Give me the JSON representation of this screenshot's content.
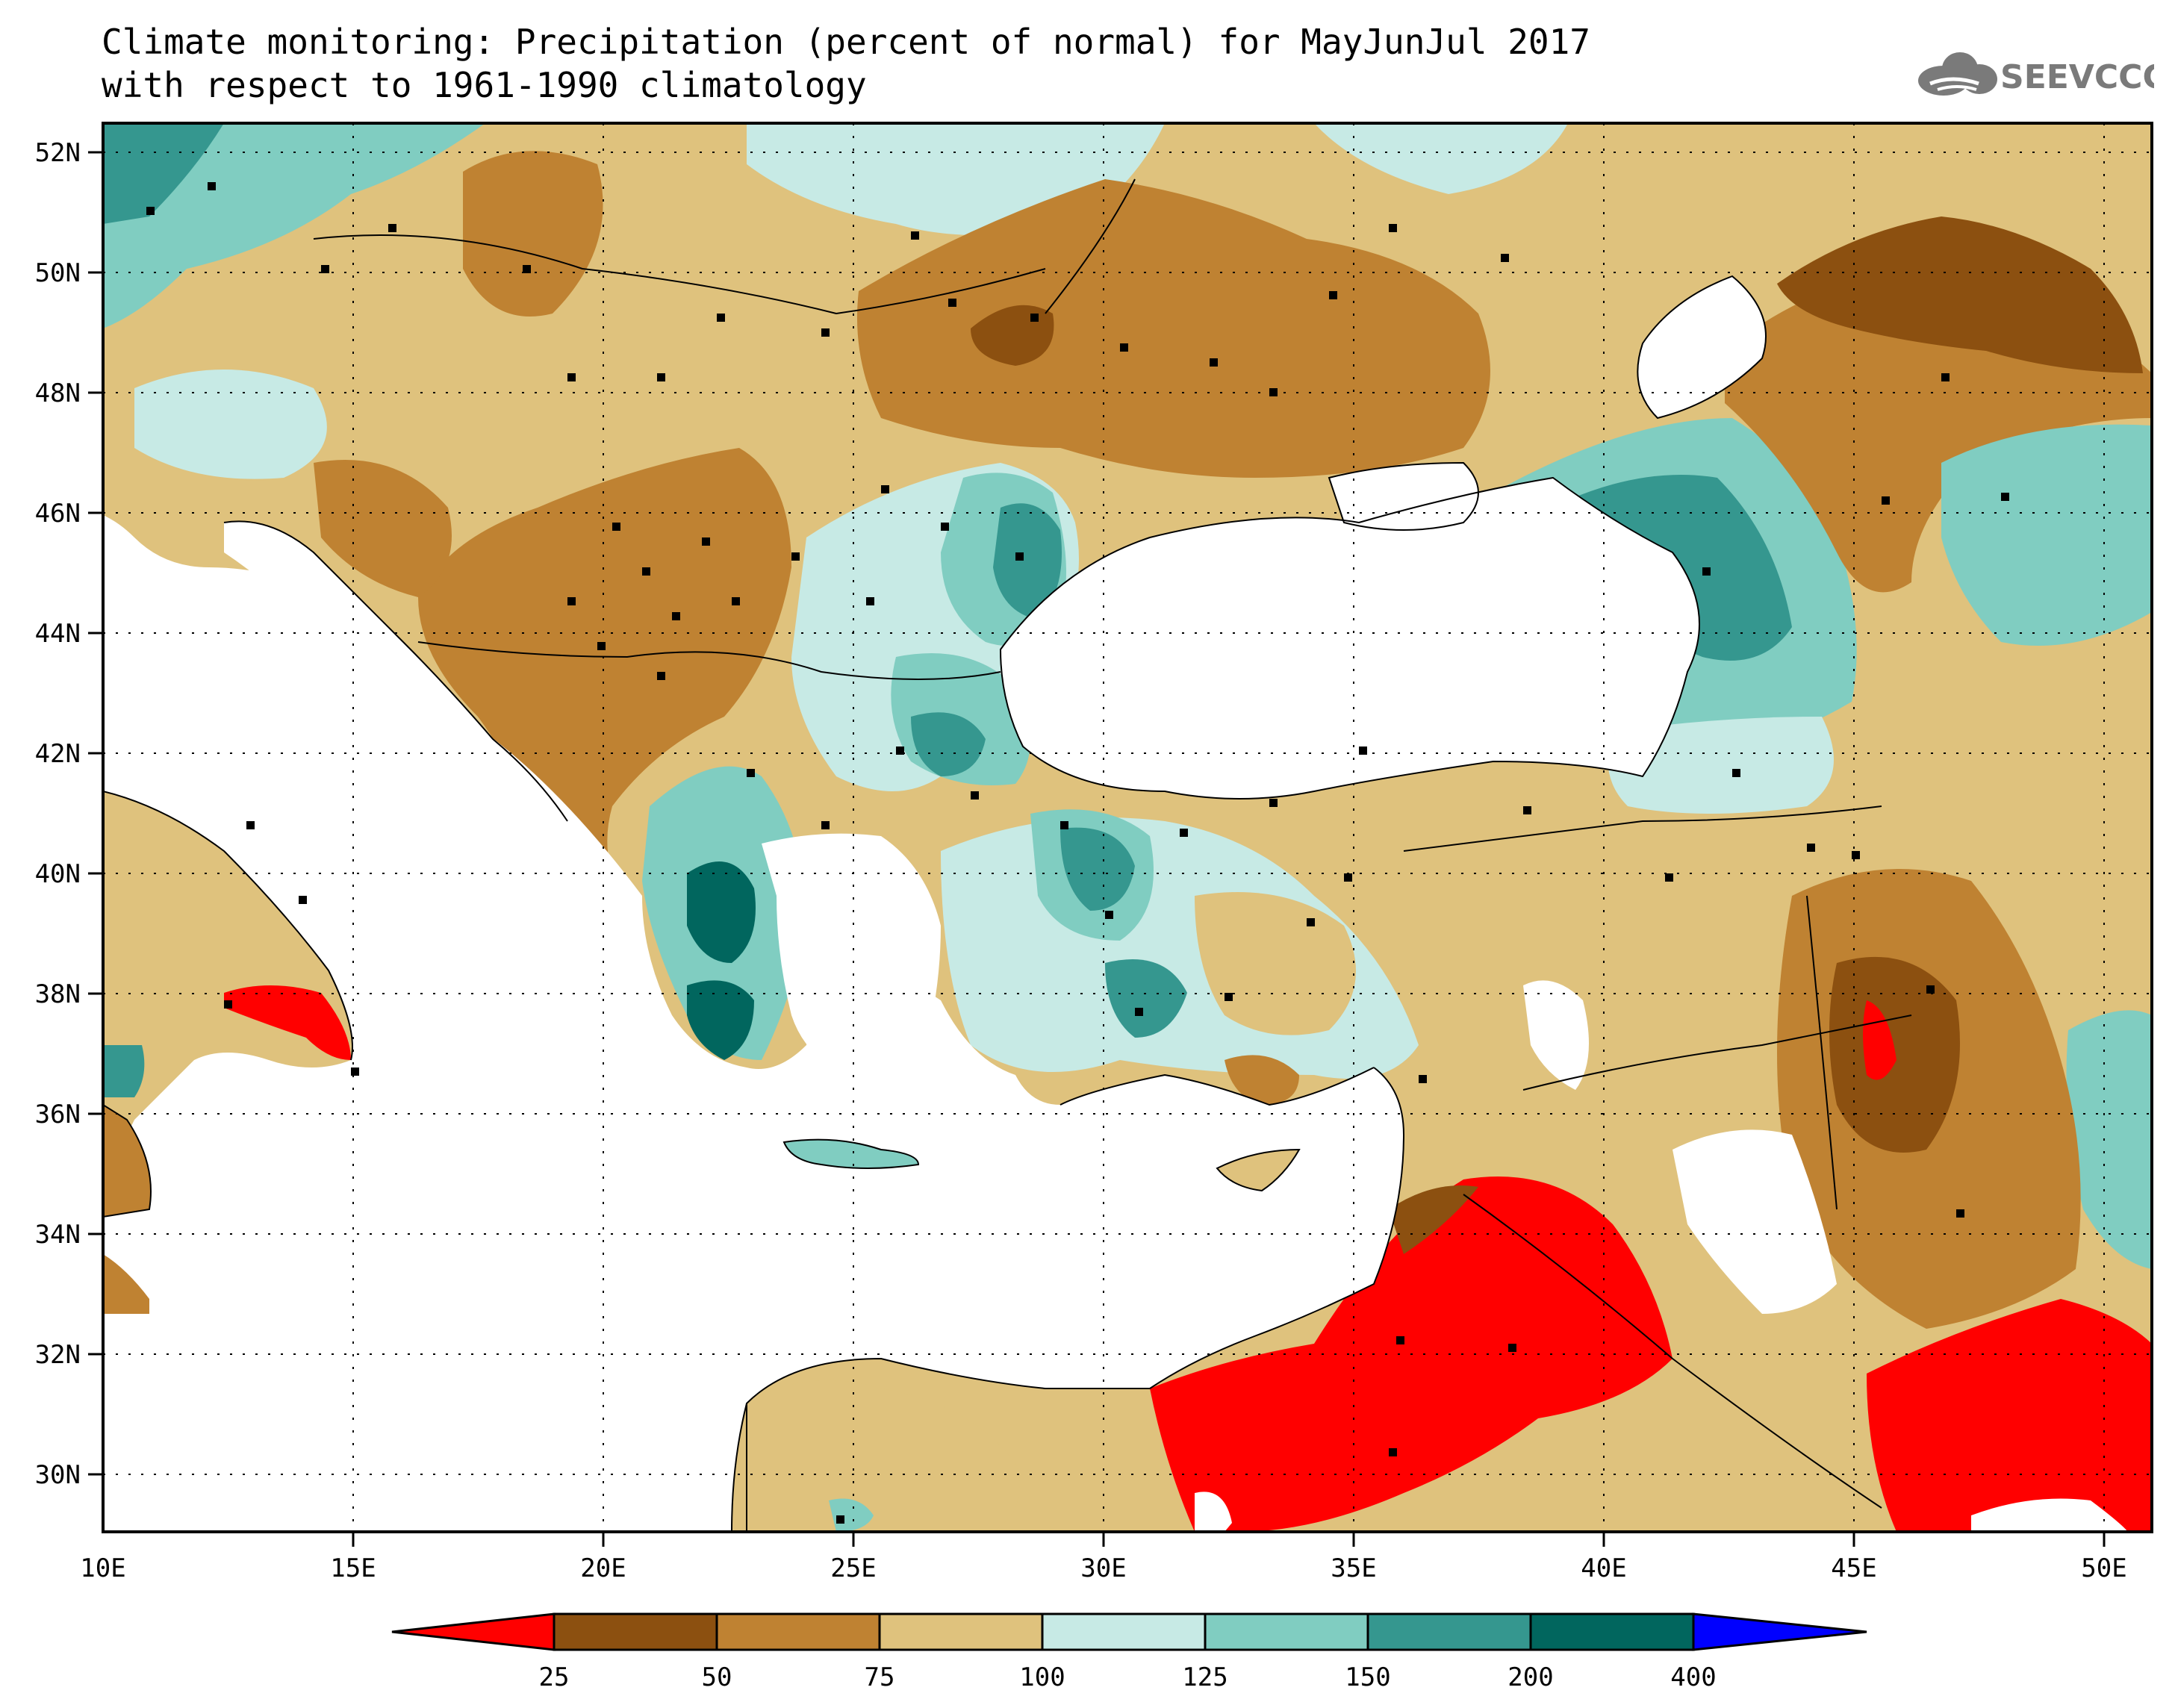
{
  "title": {
    "line1": "Climate monitoring: Precipitation (percent of normal) for MayJunJul 2017",
    "line2": "with respect to 1961-1990 climatology"
  },
  "logo": {
    "text": "SEEVCCC",
    "icon": "cloud-icon"
  },
  "axes": {
    "lon_ticks": [
      "10E",
      "15E",
      "20E",
      "25E",
      "30E",
      "35E",
      "40E",
      "45E",
      "50E"
    ],
    "lat_ticks": [
      "52N",
      "50N",
      "48N",
      "46N",
      "44N",
      "42N",
      "40N",
      "38N",
      "36N",
      "34N",
      "32N",
      "30N"
    ],
    "lon_range": [
      10,
      51
    ],
    "lat_range": [
      29,
      53
    ]
  },
  "colorbar": {
    "labels": [
      "25",
      "50",
      "75",
      "100",
      "125",
      "150",
      "200",
      "400"
    ],
    "colors": [
      "#ff0000",
      "#8c5010",
      "#bf8232",
      "#dfc27d",
      "#c7eae5",
      "#80cdc1",
      "#35978f",
      "#01665e",
      "#0000ff"
    ]
  },
  "colors": {
    "very_dry": "#ff0000",
    "dry_50": "#8c5010",
    "dry_75": "#bf8232",
    "dry_100": "#dfc27d",
    "wet_125": "#c7eae5",
    "wet_150": "#80cdc1",
    "wet_200": "#35978f",
    "wet_400": "#01665e",
    "extreme_wet": "#0000ff",
    "sea": "#ffffff"
  }
}
